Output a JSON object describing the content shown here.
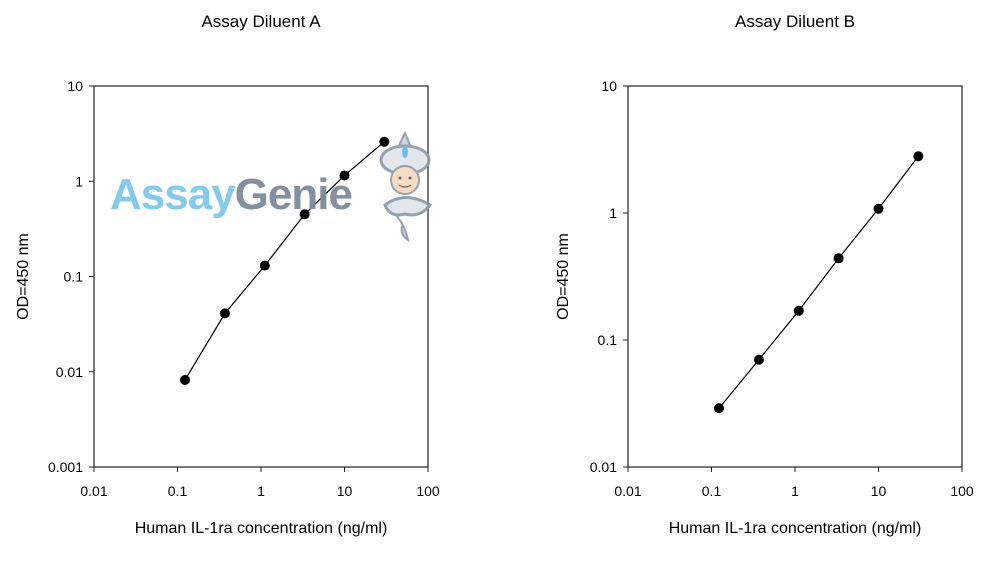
{
  "chart_data": [
    {
      "type": "line",
      "title": "Assay Diluent A",
      "xlabel": "Human IL-1ra concentration (ng/ml)",
      "ylabel": "OD=450 nm",
      "x_scale": "log",
      "y_scale": "log",
      "xlim": [
        0.01,
        100
      ],
      "ylim": [
        0.001,
        10
      ],
      "x_ticks": [
        "0.01",
        "0.1",
        "1",
        "10",
        "100"
      ],
      "y_ticks": [
        "0.001",
        "0.01",
        "0.1",
        "1",
        "10"
      ],
      "grid": false,
      "markers": "filled-circle",
      "x": [
        0.123,
        0.37,
        1.11,
        3.33,
        10,
        30
      ],
      "y": [
        0.0082,
        0.041,
        0.13,
        0.45,
        1.15,
        2.6
      ]
    },
    {
      "type": "line",
      "title": "Assay Diluent B",
      "xlabel": "Human IL-1ra concentration (ng/ml)",
      "ylabel": "OD=450 nm",
      "x_scale": "log",
      "y_scale": "log",
      "xlim": [
        0.01,
        100
      ],
      "ylim": [
        0.01,
        10
      ],
      "x_ticks": [
        "0.01",
        "0.1",
        "1",
        "10",
        "100"
      ],
      "y_ticks": [
        "0.01",
        "0.1",
        "1",
        "10"
      ],
      "grid": false,
      "markers": "filled-circle",
      "x": [
        0.123,
        0.37,
        1.11,
        3.33,
        10,
        30
      ],
      "y": [
        0.029,
        0.07,
        0.17,
        0.44,
        1.08,
        2.8
      ]
    }
  ],
  "watermark": {
    "text_part1": "Assay",
    "text_part2": "Genie",
    "color1": "#7ec8ec",
    "color2": "#7d8b9c"
  }
}
